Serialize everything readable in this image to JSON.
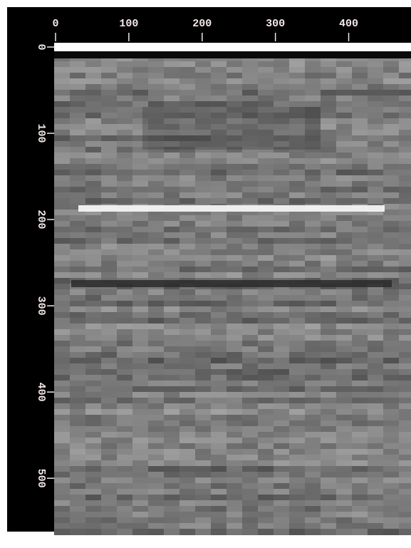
{
  "chart_data": {
    "type": "image",
    "xlim": [
      0,
      485
    ],
    "xticks": [
      0,
      100,
      200,
      300,
      400
    ],
    "ylim": [
      0,
      561
    ],
    "yticks": [
      0,
      100,
      200,
      300,
      400,
      500
    ],
    "y_reversed": true,
    "colormap": "gray"
  }
}
